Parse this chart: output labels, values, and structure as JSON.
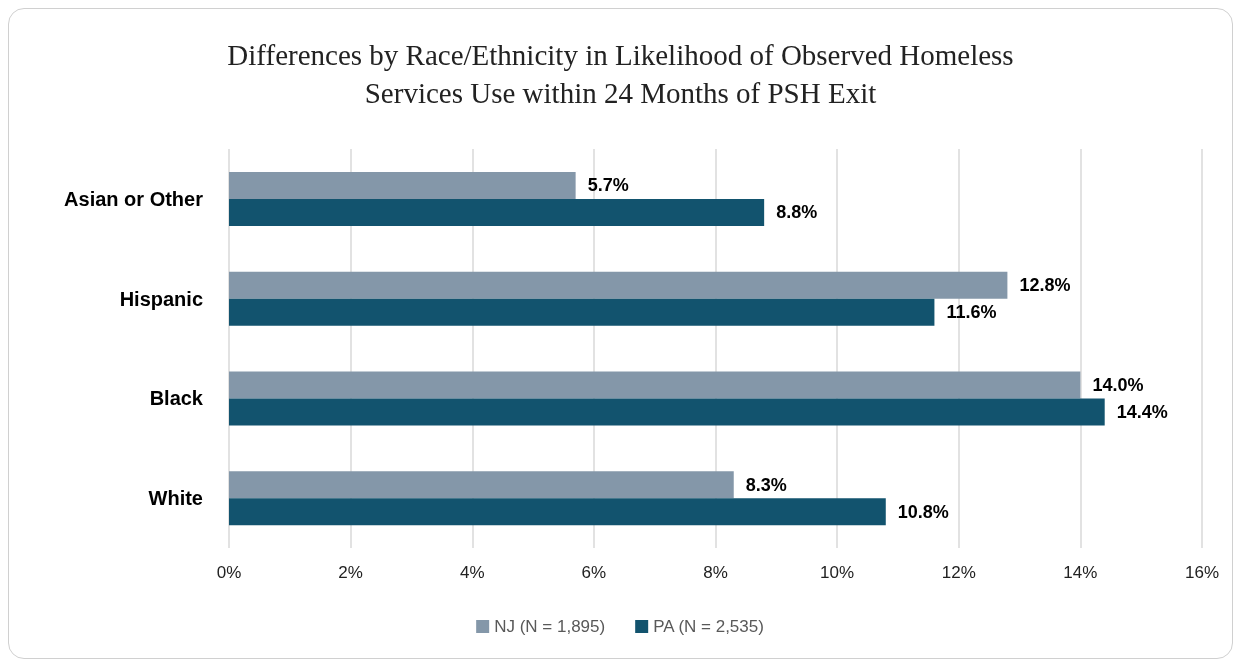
{
  "chart_data": {
    "type": "bar",
    "orientation": "horizontal",
    "title": "Differences by Race/Ethnicity in Likelihood of Observed Homeless\nServices Use within 24 Months of PSH Exit",
    "categories": [
      "Asian or Other",
      "Hispanic",
      "Black",
      "White"
    ],
    "series": [
      {
        "name": "NJ (N = 1,895)",
        "color": "#8497a9",
        "values": [
          5.7,
          12.8,
          14.0,
          8.3
        ],
        "value_labels": [
          "5.7%",
          "12.8%",
          "14.0%",
          "8.3%"
        ]
      },
      {
        "name": "PA (N = 2,535)",
        "color": "#12536e",
        "values": [
          8.8,
          11.6,
          14.4,
          10.8
        ],
        "value_labels": [
          "8.8%",
          "11.6%",
          "14.4%",
          "10.8%"
        ]
      }
    ],
    "xlim": [
      0,
      16
    ],
    "xticks": [
      {
        "value": 0,
        "label": "0%"
      },
      {
        "value": 2,
        "label": "2%"
      },
      {
        "value": 4,
        "label": "4%"
      },
      {
        "value": 6,
        "label": "6%"
      },
      {
        "value": 8,
        "label": "8%"
      },
      {
        "value": 10,
        "label": "10%"
      },
      {
        "value": 12,
        "label": "12%"
      },
      {
        "value": 14,
        "label": "14%"
      },
      {
        "value": 16,
        "label": "16%"
      }
    ],
    "grid": "x",
    "legend": "bottom"
  }
}
